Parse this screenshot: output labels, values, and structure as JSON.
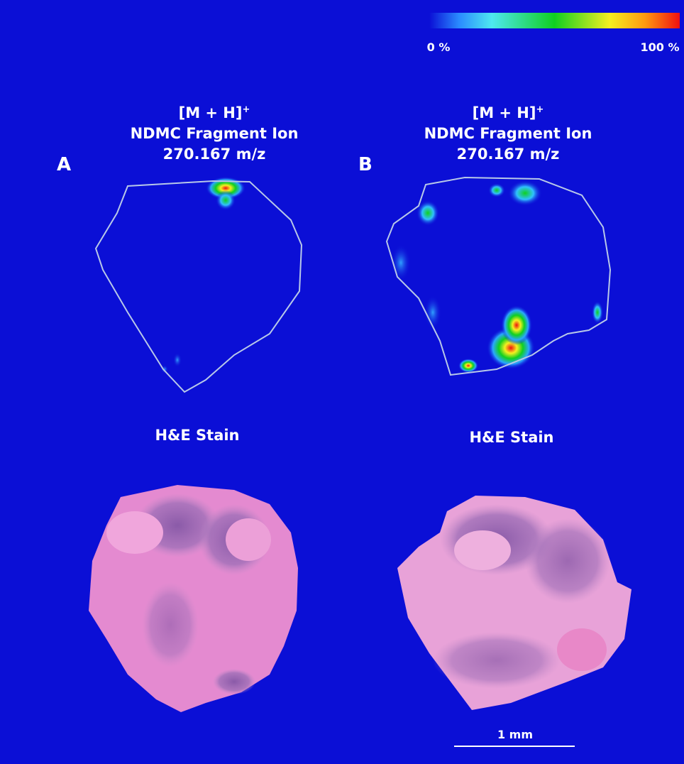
{
  "colorbar": {
    "min_label": "0 %",
    "max_label": "100 %"
  },
  "panels": [
    {
      "label": "A",
      "ion_title": {
        "adduct": "[M + H]",
        "charge": "+",
        "name": "NDMC Fragment Ion",
        "mz": "270.167 m/z"
      },
      "stain_title": "H&E Stain"
    },
    {
      "label": "B",
      "ion_title": {
        "adduct": "[M + H]",
        "charge": "+",
        "name": "NDMC Fragment Ion",
        "mz": "270.167 m/z"
      },
      "stain_title": "H&E Stain"
    }
  ],
  "scale_bar": {
    "label": "1 mm"
  }
}
